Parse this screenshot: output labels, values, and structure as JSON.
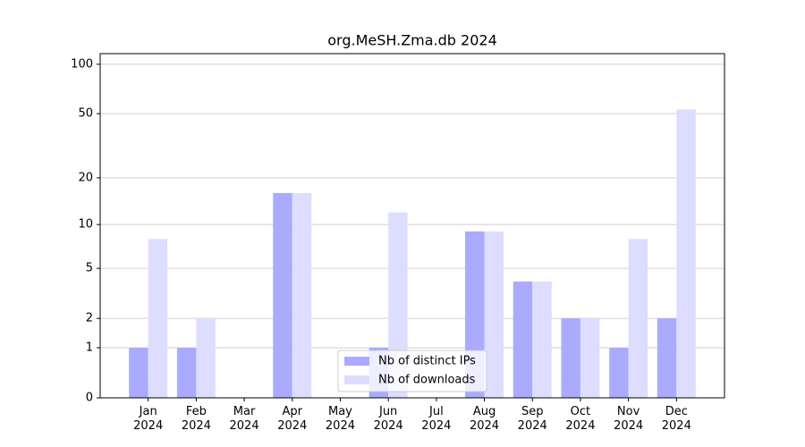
{
  "chart_data": {
    "type": "bar",
    "title": "org.MeSH.Zma.db 2024",
    "categories": [
      "Jan 2024",
      "Feb 2024",
      "Mar 2024",
      "Apr 2024",
      "May 2024",
      "Jun 2024",
      "Jul 2024",
      "Aug 2024",
      "Sep 2024",
      "Oct 2024",
      "Nov 2024",
      "Dec 2024"
    ],
    "series": [
      {
        "name": "Nb of distinct IPs",
        "color": "#aaaaff",
        "values": [
          1,
          1,
          0,
          16,
          0,
          1,
          0,
          9,
          4,
          2,
          1,
          2
        ]
      },
      {
        "name": "Nb of downloads",
        "color": "#ddddff",
        "values": [
          8,
          2,
          0,
          16,
          0,
          12,
          0,
          9,
          4,
          2,
          8,
          53
        ]
      }
    ],
    "yscale": "log1p",
    "ylim": [
      0,
      116
    ],
    "yticks": [
      0,
      1,
      2,
      5,
      10,
      20,
      50,
      100
    ],
    "grid": true,
    "legend": "lower center"
  }
}
